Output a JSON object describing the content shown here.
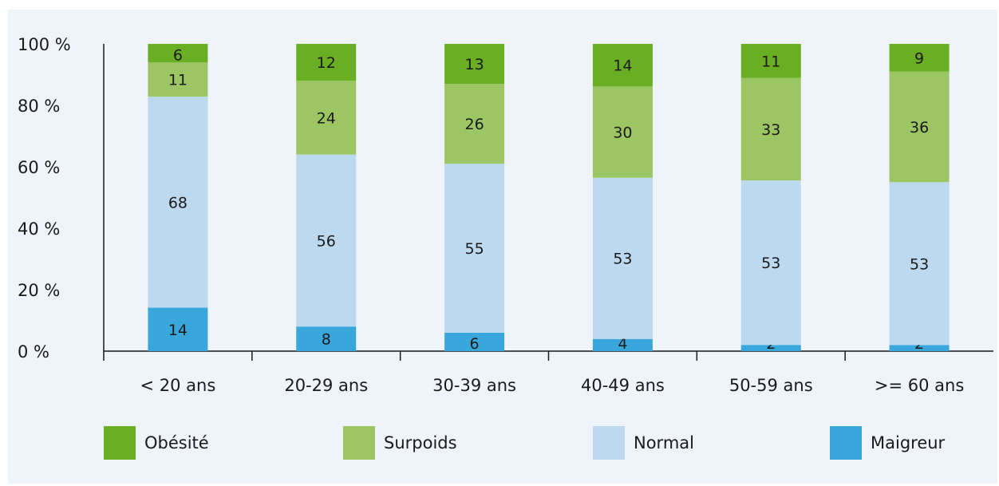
{
  "chart_data": {
    "type": "bar",
    "stacked": true,
    "percent_stacked": true,
    "categories": [
      "< 20 ans",
      "20-29 ans",
      "30-39 ans",
      "40-49 ans",
      "50-59 ans",
      ">= 60 ans"
    ],
    "series": [
      {
        "name": "Maigreur",
        "color": "#3aa7dc",
        "values": [
          14,
          8,
          6,
          4,
          2,
          2
        ]
      },
      {
        "name": "Normal",
        "color": "#bcd9ef",
        "values": [
          68,
          56,
          55,
          53,
          53,
          53
        ]
      },
      {
        "name": "Surpoids",
        "color": "#9cc563",
        "values": [
          11,
          24,
          26,
          30,
          33,
          36
        ]
      },
      {
        "name": "Obésité",
        "color": "#6aaf23",
        "values": [
          6,
          12,
          13,
          14,
          11,
          9
        ]
      }
    ],
    "ylim": [
      0,
      100
    ],
    "y_ticks": [
      "0 %",
      "20 %",
      "40 %",
      "60 %",
      "80 %",
      "100 %"
    ],
    "title": "",
    "xlabel": "",
    "ylabel": "",
    "legend": {
      "placement": "bottom",
      "order": [
        "Obésité",
        "Surpoids",
        "Normal",
        "Maigreur"
      ]
    },
    "grid": false
  }
}
